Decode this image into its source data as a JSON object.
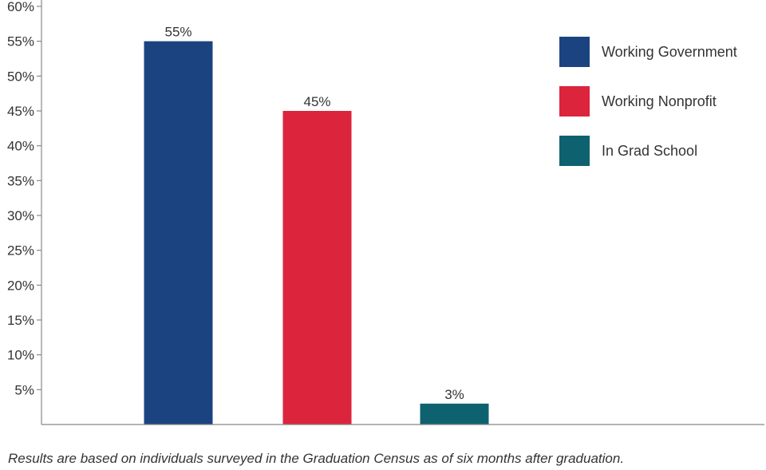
{
  "chart_data": {
    "type": "bar",
    "categories": [
      "Working Government",
      "Working Nonprofit",
      "In Grad School"
    ],
    "values": [
      55,
      45,
      3
    ],
    "data_labels": [
      "55%",
      "45%",
      "3%"
    ],
    "colors": [
      "#1b4380",
      "#dc243c",
      "#0e6270"
    ],
    "ylim": [
      0,
      60
    ],
    "yticks": [
      5,
      10,
      15,
      20,
      25,
      30,
      35,
      40,
      45,
      50,
      55,
      60
    ],
    "ytick_labels": [
      "5%",
      "10%",
      "15%",
      "20%",
      "25%",
      "30%",
      "35%",
      "40%",
      "45%",
      "50%",
      "55%",
      "60%"
    ],
    "legend": {
      "position": "top-right",
      "entries": [
        "Working Government",
        "Working Nonprofit",
        "In Grad School"
      ]
    },
    "grid": false
  },
  "footnote": "Results are based on individuals surveyed in the Graduation Census as of six months after graduation."
}
